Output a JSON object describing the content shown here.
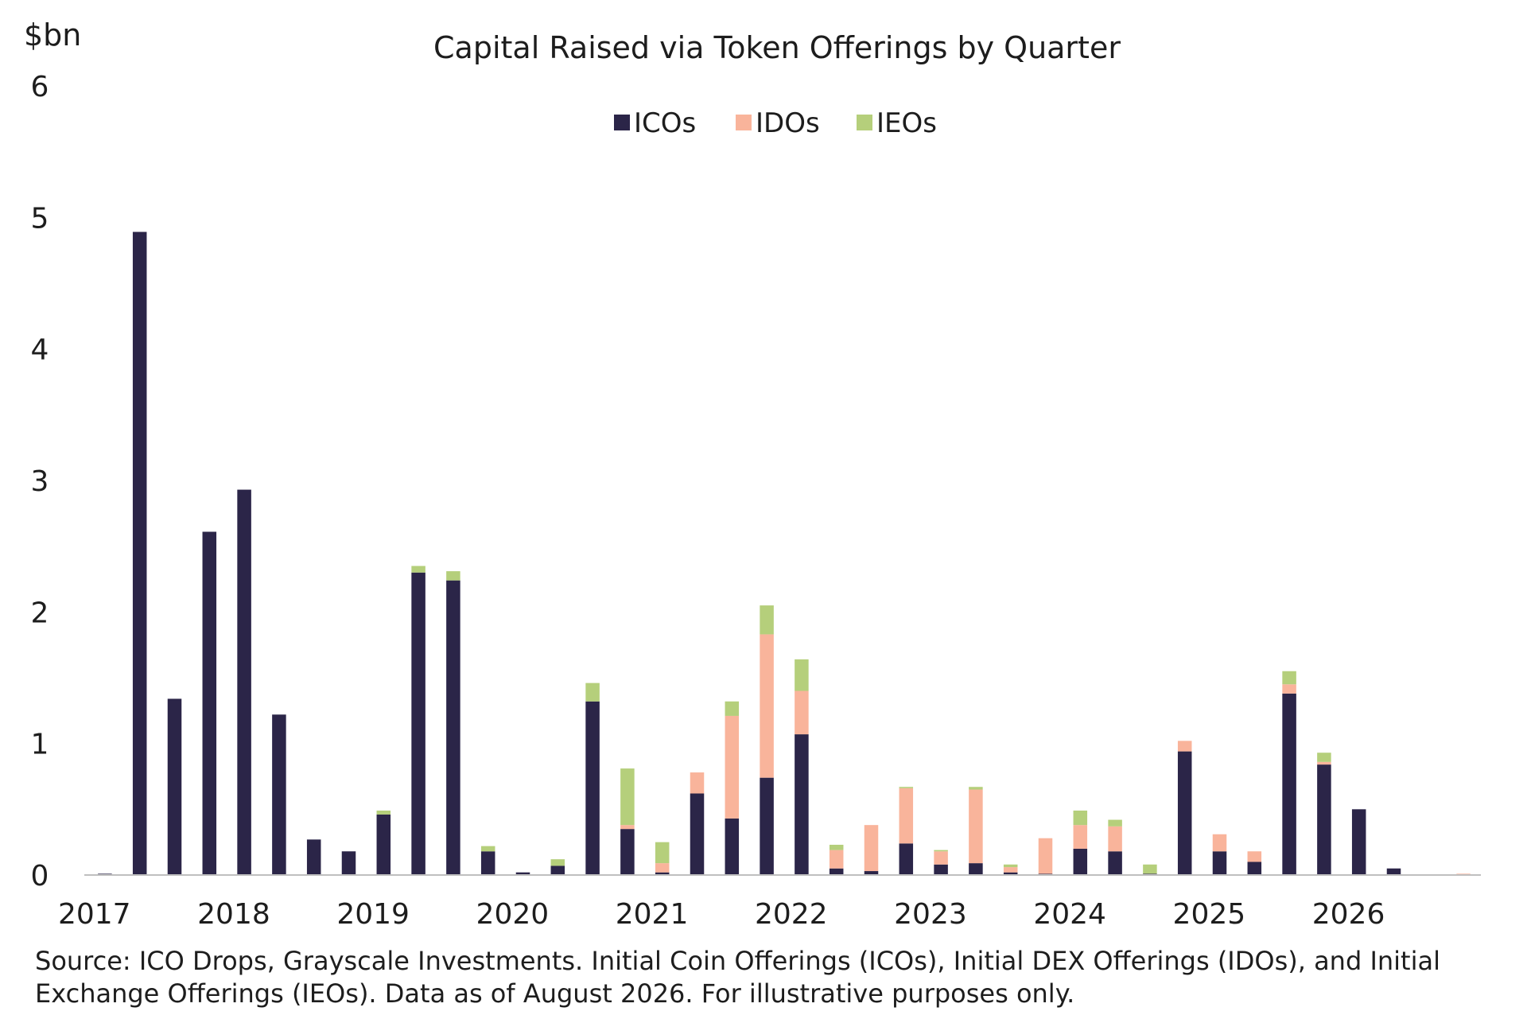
{
  "chart_data": {
    "type": "bar",
    "stacked": true,
    "title": "Capital Raised via Token Offerings by Quarter",
    "ylabel": "$bn",
    "xlabel": "",
    "ylim": [
      0,
      6
    ],
    "yticks": [
      0,
      1,
      2,
      3,
      4,
      5,
      6
    ],
    "x_tick_labels": [
      "2017",
      "2018",
      "2019",
      "2020",
      "2021",
      "2022",
      "2023",
      "2024",
      "2025",
      "2026"
    ],
    "legend_position": "top-center",
    "grid": false,
    "categories": [
      "2017 Q1",
      "2017 Q2",
      "2017 Q3",
      "2017 Q4",
      "2018 Q1",
      "2018 Q2",
      "2018 Q3",
      "2018 Q4",
      "2019 Q1",
      "2019 Q2",
      "2019 Q3",
      "2019 Q4",
      "2020 Q1",
      "2020 Q2",
      "2020 Q3",
      "2020 Q4",
      "2021 Q1",
      "2021 Q2",
      "2021 Q3",
      "2021 Q4",
      "2022 Q1",
      "2022 Q2",
      "2022 Q3",
      "2022 Q4",
      "2023 Q1",
      "2023 Q2",
      "2023 Q3",
      "2023 Q4",
      "2024 Q1",
      "2024 Q2",
      "2024 Q3",
      "2024 Q4",
      "2025 Q1",
      "2025 Q2",
      "2025 Q3",
      "2025 Q4",
      "2026 Q1",
      "2026 Q2",
      "2026 Q3",
      "2026 Q4"
    ],
    "series": [
      {
        "name": "ICOs",
        "color": "#2b2548",
        "values": [
          0.01,
          4.89,
          1.34,
          2.61,
          2.93,
          1.22,
          0.27,
          0.18,
          0.46,
          2.3,
          2.24,
          0.18,
          0.02,
          0.07,
          1.32,
          0.35,
          0.02,
          0.62,
          0.43,
          0.74,
          1.07,
          0.05,
          0.03,
          0.24,
          0.08,
          0.09,
          0.02,
          0.01,
          0.2,
          0.18,
          0.01,
          0.94,
          0.18,
          0.1,
          1.38,
          0.84,
          0.5,
          0.05,
          0.0,
          0.0
        ]
      },
      {
        "name": "IDOs",
        "color": "#f9b49b",
        "values": [
          0,
          0,
          0,
          0,
          0,
          0,
          0,
          0,
          0,
          0,
          0,
          0,
          0,
          0,
          0,
          0.03,
          0.07,
          0.16,
          0.78,
          1.09,
          0.33,
          0.14,
          0.35,
          0.42,
          0.1,
          0.56,
          0.04,
          0.27,
          0.18,
          0.19,
          0,
          0.08,
          0.13,
          0.08,
          0.07,
          0.02,
          0,
          0,
          0,
          0.01
        ]
      },
      {
        "name": "IEOs",
        "color": "#b5cf7b",
        "values": [
          0,
          0,
          0,
          0,
          0,
          0,
          0,
          0,
          0.03,
          0.05,
          0.07,
          0.04,
          0,
          0.05,
          0.14,
          0.43,
          0.16,
          0,
          0.11,
          0.22,
          0.24,
          0.04,
          0,
          0.01,
          0.01,
          0.02,
          0.02,
          0,
          0.11,
          0.05,
          0.07,
          0,
          0,
          0,
          0.1,
          0.07,
          0,
          0,
          0,
          0
        ]
      }
    ]
  },
  "footer": {
    "source_line1": "Source: ICO Drops, Grayscale Investments. Initial Coin Offerings (ICOs), Initial DEX Offerings (IDOs), and Initial",
    "source_line2": "Exchange Offerings (IEOs). Data as of August 2026. For illustrative purposes only."
  }
}
